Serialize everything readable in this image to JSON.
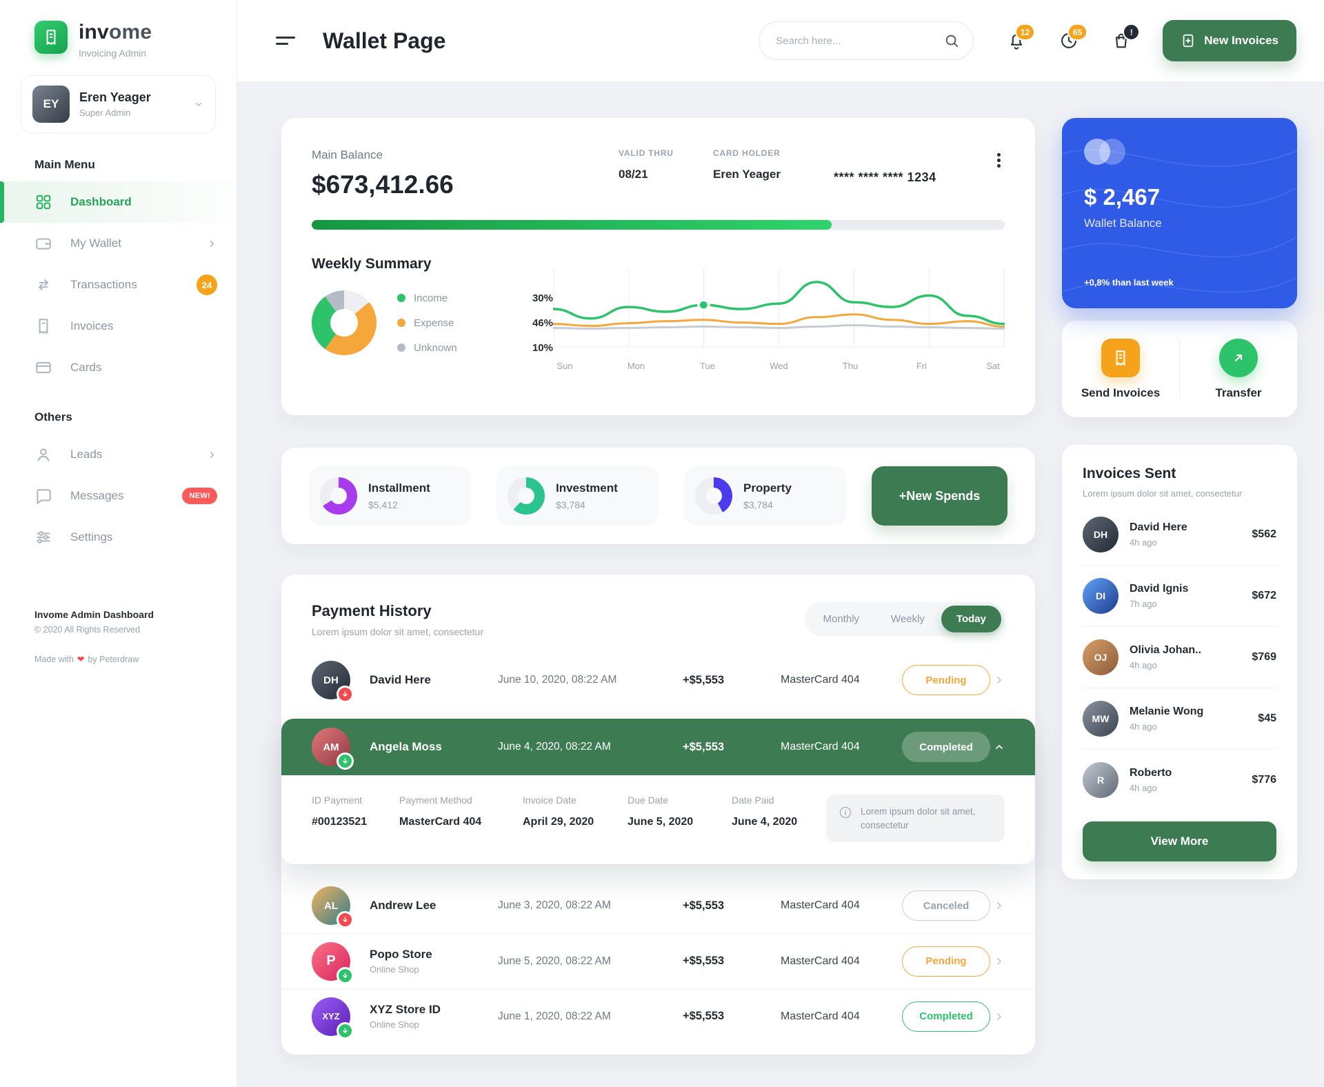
{
  "brand": {
    "bold": "inv",
    "light": "ome",
    "subtitle": "Invoicing Admin"
  },
  "user": {
    "name": "Eren Yeager",
    "role": "Super Admin",
    "initials": "EY"
  },
  "sidebar": {
    "main_menu_label": "Main Menu",
    "others_label": "Others",
    "items": [
      {
        "label": "Dashboard"
      },
      {
        "label": "My Wallet"
      },
      {
        "label": "Transactions",
        "badge": "24"
      },
      {
        "label": "Invoices"
      },
      {
        "label": "Cards"
      }
    ],
    "others": [
      {
        "label": "Leads"
      },
      {
        "label": "Messages",
        "badge": "NEW!"
      },
      {
        "label": "Settings"
      }
    ],
    "footer": {
      "line1": "Invome Admin Dashboard",
      "line2": "© 2020 All Rights Reserved",
      "made_with": "Made with",
      "heart": "❤",
      "by": "by Peterdraw"
    }
  },
  "header": {
    "title": "Wallet Page",
    "search_placeholder": "Search here...",
    "notification_count": "12",
    "reminder_count": "65",
    "cart_badge": "!",
    "new_invoices_label": "New Invoices"
  },
  "balance": {
    "label": "Main Balance",
    "amount": "$673,412.66",
    "valid_thru_label": "VALID THRU",
    "valid_thru_value": "08/21",
    "card_holder_label": "CARD HOLDER",
    "card_holder_value": "Eren Yeager",
    "card_number": "**** **** **** 1234",
    "progress_pct": 75
  },
  "weekly": {
    "title": "Weekly Summary",
    "legend": [
      {
        "label": "Income",
        "pct": "30%",
        "color": "#2CC36B"
      },
      {
        "label": "Expense",
        "pct": "46%",
        "color": "#F6A73C"
      },
      {
        "label": "Unknown",
        "pct": "10%",
        "color": "#B4BCC6"
      }
    ],
    "donut_slices": [
      {
        "color": "#EDEFF2",
        "pct": 14
      },
      {
        "color": "#F6A73C",
        "pct": 46
      },
      {
        "color": "#2CC36B",
        "pct": 30
      },
      {
        "color": "#B4BCC6",
        "pct": 10
      }
    ],
    "chart": {
      "type": "line",
      "days": [
        "Sun",
        "Mon",
        "Tue",
        "Wed",
        "Thu",
        "Fri",
        "Sat"
      ],
      "series": [
        {
          "name": "Income",
          "color": "#2CC36B",
          "width": 3.5,
          "values": [
            52,
            38,
            55,
            48,
            58,
            52,
            60,
            92,
            62,
            55,
            72,
            42,
            30
          ]
        },
        {
          "name": "Expense",
          "color": "#F6A73C",
          "width": 3,
          "values": [
            30,
            27,
            31,
            34,
            36,
            32,
            30,
            40,
            44,
            36,
            30,
            34,
            26
          ]
        },
        {
          "name": "Unknown",
          "color": "#C6CCD4",
          "width": 3,
          "values": [
            24,
            23,
            24,
            25,
            26,
            25,
            24,
            26,
            28,
            26,
            25,
            24,
            23
          ]
        }
      ],
      "dot_point_index": 4
    }
  },
  "spends": {
    "items": [
      {
        "label": "Installment",
        "amount": "$5,412",
        "donut": [
          {
            "color": "#A93BEF",
            "pct": 66
          },
          {
            "color": "#ECEEF2",
            "pct": 34
          }
        ]
      },
      {
        "label": "Investment",
        "amount": "$3,784",
        "donut": [
          {
            "color": "#2BC48F",
            "pct": 62
          },
          {
            "color": "#ECEEF2",
            "pct": 38
          }
        ]
      },
      {
        "label": "Property",
        "amount": "$3,784",
        "donut": [
          {
            "color": "#4B3AEE",
            "pct": 42
          },
          {
            "color": "#ECEEF2",
            "pct": 58
          }
        ]
      }
    ],
    "new_spends_label": "+New Spends"
  },
  "payments": {
    "title": "Payment History",
    "subtitle": "Lorem ipsum dolor sit amet, consectetur",
    "tabs": {
      "monthly": "Monthly",
      "weekly": "Weekly",
      "today": "Today"
    },
    "active_tab": "Today",
    "rows": [
      {
        "name": "David Here",
        "date": "June 10, 2020, 08:22 AM",
        "amount": "+$5,553",
        "method": "MasterCard 404",
        "status": "Pending",
        "initials": "DH"
      },
      {
        "name": "Andrew Lee",
        "date": "June 3, 2020, 08:22 AM",
        "amount": "+$5,553",
        "method": "MasterCard 404",
        "status": "Canceled",
        "initials": "AL"
      },
      {
        "name": "Popo Store",
        "sub": "Online Shop",
        "date": "June 5, 2020, 08:22 AM",
        "amount": "+$5,553",
        "method": "MasterCard 404",
        "status": "Pending",
        "initials": "P"
      },
      {
        "name": "XYZ Store ID",
        "sub": "Online Shop",
        "date": "June 1, 2020, 08:22 AM",
        "amount": "+$5,553",
        "method": "MasterCard 404",
        "status": "Completed",
        "initials": "XYZ"
      }
    ],
    "expanded": {
      "name": "Angela Moss",
      "date": "June 4, 2020, 08:22 AM",
      "amount": "+$5,553",
      "method": "MasterCard 404",
      "status": "Completed",
      "initials": "AM",
      "details": [
        {
          "label": "ID Payment",
          "value": "#00123521"
        },
        {
          "label": "Payment Method",
          "value": "MasterCard 404"
        },
        {
          "label": "Invoice Date",
          "value": "April 29, 2020"
        },
        {
          "label": "Due Date",
          "value": "June 5, 2020"
        },
        {
          "label": "Date Paid",
          "value": "June 4, 2020"
        }
      ],
      "note": "Lorem ipsum dolor sit amet, consectetur"
    }
  },
  "wallet": {
    "amount": "$ 2,467",
    "label": "Wallet Balance",
    "delta": "+0,8% than last week"
  },
  "quick_actions": {
    "send_label": "Send Invoices",
    "transfer_label": "Transfer"
  },
  "invoices_sent": {
    "title": "Invoices Sent",
    "subtitle": "Lorem ipsum dolor sit amet, consectetur",
    "items": [
      {
        "name": "David Here",
        "time": "4h ago",
        "amount": "$562",
        "initials": "DH"
      },
      {
        "name": "David Ignis",
        "time": "7h ago",
        "amount": "$672",
        "initials": "DI"
      },
      {
        "name": "Olivia Johan..",
        "time": "4h ago",
        "amount": "$769",
        "initials": "OJ"
      },
      {
        "name": "Melanie Wong",
        "time": "4h ago",
        "amount": "$45",
        "initials": "MW"
      },
      {
        "name": "Roberto",
        "time": "4h ago",
        "amount": "$776",
        "initials": "R"
      }
    ],
    "view_more_label": "View More"
  }
}
